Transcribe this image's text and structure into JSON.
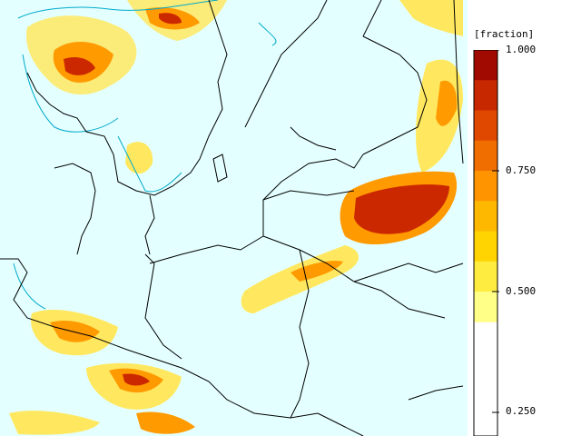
{
  "legend": {
    "unit_label": "[fraction]",
    "ticks": [
      "1.000",
      "0.750",
      "0.500",
      "0.250"
    ],
    "tick_values": [
      1.0,
      0.75,
      0.5,
      0.25
    ],
    "band_colors": [
      "#a00a00",
      "#c82800",
      "#e04800",
      "#f06e00",
      "#ff9400",
      "#ffb800",
      "#ffd400",
      "#ffec40",
      "#ffff88"
    ]
  },
  "colors": {
    "ocean_land_bg": "#e4ffff",
    "coast_contour": "#00aacc",
    "borders": "#000000",
    "low_fraction": "#ffe860",
    "mid_fraction": "#ff9a00",
    "high_fraction": "#cc2800"
  }
}
